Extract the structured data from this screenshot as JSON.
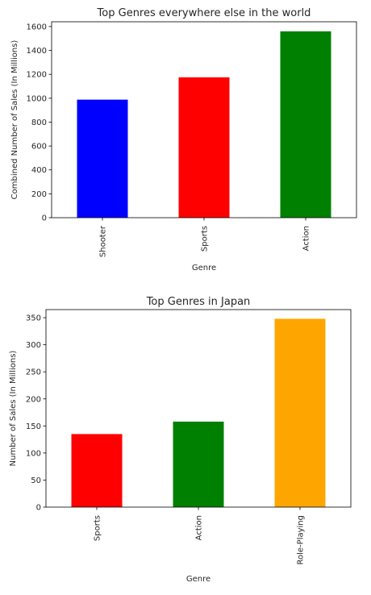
{
  "chart_data": [
    {
      "type": "bar",
      "title": "Top Genres everywhere else in the world",
      "xlabel": "Genre",
      "ylabel": "Combined Number of Sales (In Millions)",
      "categories": [
        "Shooter",
        "Sports",
        "Action"
      ],
      "values": [
        988,
        1175,
        1560
      ],
      "colors": [
        "#0000ff",
        "#ff0000",
        "#008000"
      ],
      "ylim": [
        0,
        1640
      ],
      "yticks": [
        0,
        200,
        400,
        600,
        800,
        1000,
        1200,
        1400,
        1600
      ],
      "grid": false,
      "legend": "none"
    },
    {
      "type": "bar",
      "title": "Top Genres in Japan",
      "xlabel": "Genre",
      "ylabel": "Number of Sales (In Millions)",
      "categories": [
        "Sports",
        "Action",
        "Role-Playing"
      ],
      "values": [
        135,
        158,
        348
      ],
      "colors": [
        "#ff0000",
        "#008000",
        "#ffa500"
      ],
      "ylim": [
        0,
        365
      ],
      "yticks": [
        0,
        50,
        100,
        150,
        200,
        250,
        300,
        350
      ],
      "grid": false,
      "legend": "none"
    }
  ]
}
